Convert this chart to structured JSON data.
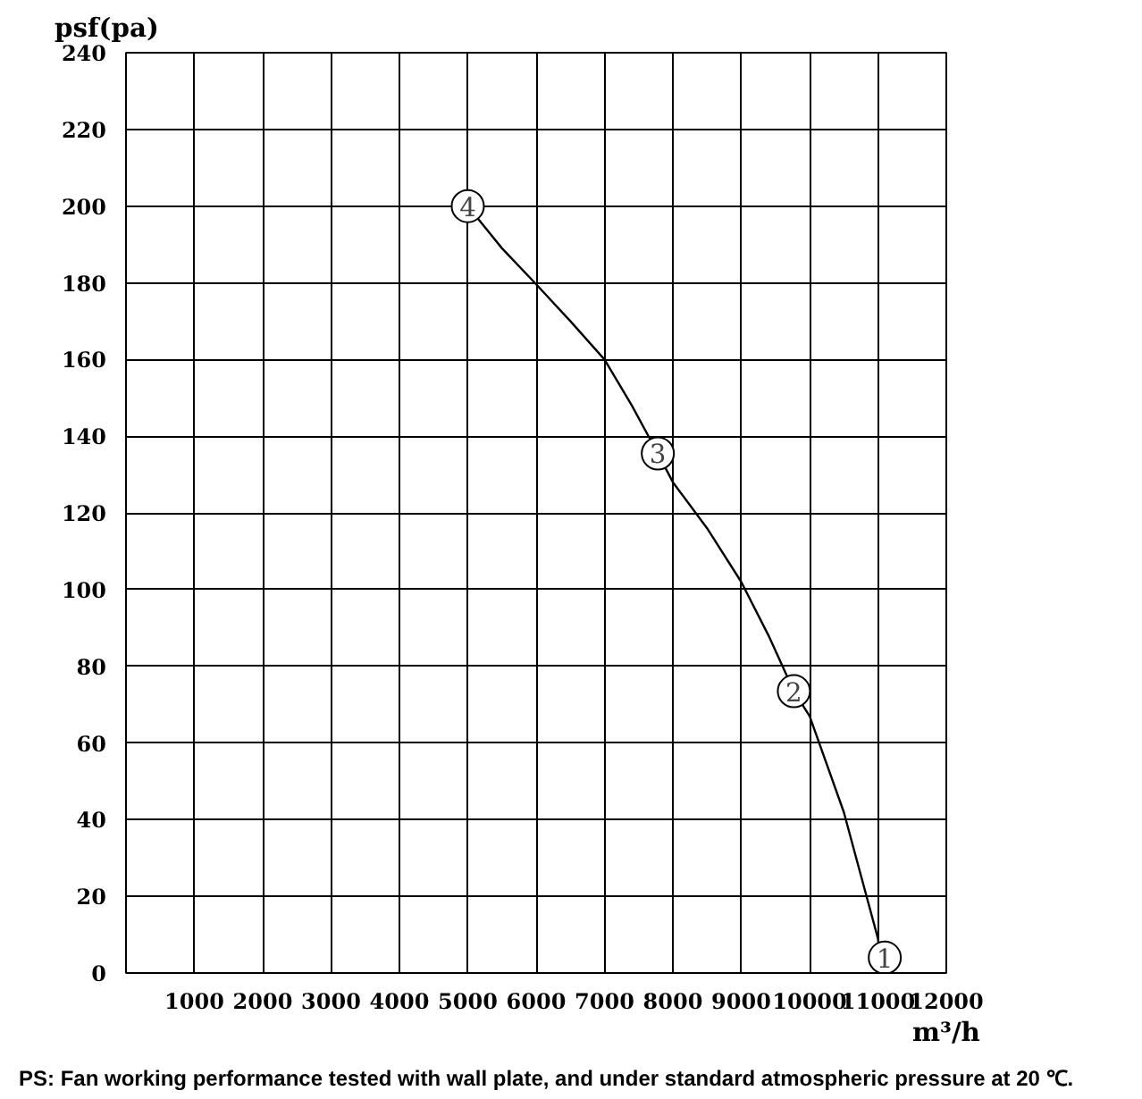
{
  "chart_data": {
    "type": "line",
    "ylabel": "psf(pa)",
    "xlabel": "m³/h",
    "x": [
      5000,
      5500,
      5980,
      6500,
      7000,
      7400,
      7780,
      8000,
      8500,
      9000,
      9400,
      9770,
      10000,
      10500,
      11000,
      11050
    ],
    "series": [
      {
        "color": "#000000",
        "values": [
          200,
          189,
          180,
          170,
          160,
          148,
          135.5,
          128,
          116,
          102,
          88,
          73.5,
          67,
          42,
          9,
          0
        ]
      }
    ],
    "xlim": [
      0,
      12000
    ],
    "xticks": [
      1000,
      2000,
      3000,
      4000,
      5000,
      6000,
      7000,
      8000,
      9000,
      10000,
      11000,
      12000
    ],
    "ylim": [
      0,
      240
    ],
    "yticks": [
      0,
      20,
      40,
      60,
      80,
      100,
      120,
      140,
      160,
      180,
      200,
      220,
      240
    ],
    "grid": true,
    "marker": "none",
    "line_style": "solid",
    "annotations": [
      {
        "text": "1",
        "x": 11100,
        "y": 4
      },
      {
        "text": "2",
        "x": 9770,
        "y": 73.5
      },
      {
        "text": "3",
        "x": 7780,
        "y": 135.5
      },
      {
        "text": "4",
        "x": 5000,
        "y": 200
      },
      "PS: Fan working performance tested with wall plate, and under standard atmospheric pressure at 20 ℃."
    ]
  }
}
